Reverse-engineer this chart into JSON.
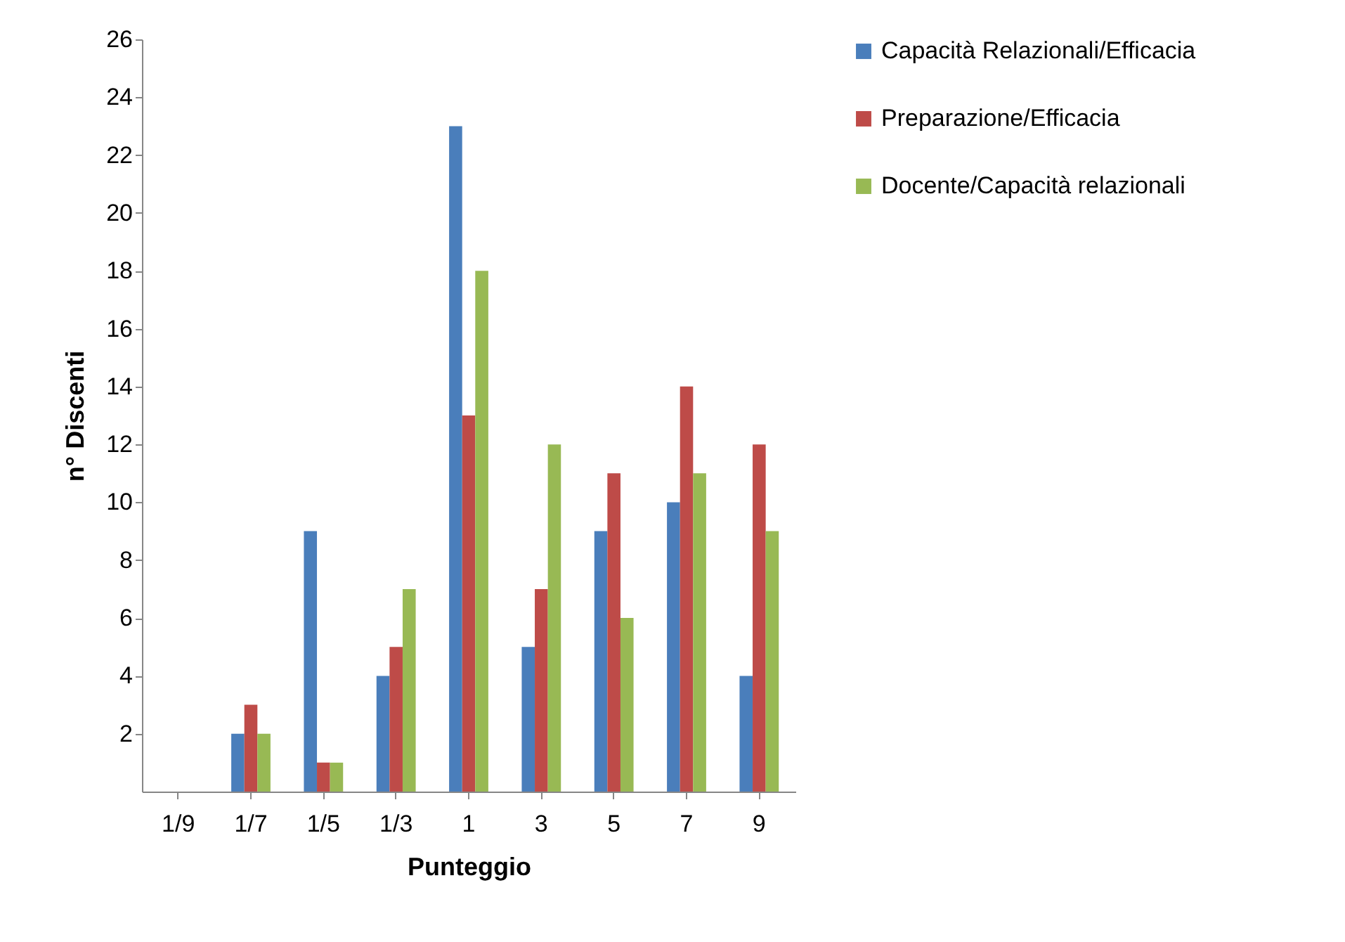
{
  "chart_data": {
    "type": "bar",
    "xlabel": "Punteggio",
    "ylabel": "n° Discenti",
    "categories": [
      "1/9",
      "1/7",
      "1/5",
      "1/3",
      "1",
      "3",
      "5",
      "7",
      "9"
    ],
    "series": [
      {
        "name": "Capacità Relazionali/Efficacia",
        "color": "#4a7ebb",
        "values": [
          0,
          2,
          9,
          4,
          23,
          5,
          9,
          10,
          4
        ]
      },
      {
        "name": "Preparazione/Efficacia",
        "color": "#be4b48",
        "values": [
          0,
          3,
          1,
          5,
          13,
          7,
          11,
          14,
          12
        ]
      },
      {
        "name": "Docente/Capacità relazionali",
        "color": "#98b954",
        "values": [
          0,
          2,
          1,
          7,
          18,
          12,
          6,
          11,
          9
        ]
      }
    ],
    "ylim": [
      0,
      26
    ],
    "yticks": [
      2,
      4,
      6,
      8,
      10,
      12,
      14,
      16,
      18,
      20,
      22,
      24,
      26
    ],
    "grid": false,
    "legend": "right"
  }
}
